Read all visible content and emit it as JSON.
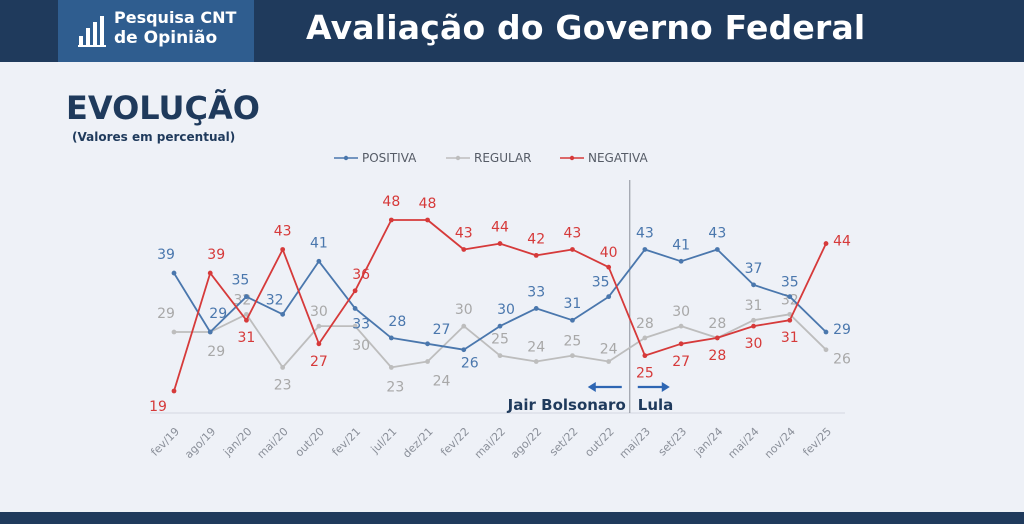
{
  "header": {
    "logo_line1": "Pesquisa CNT",
    "logo_line2": "de Opinião",
    "title": "Avaliação do Governo Federal"
  },
  "section": {
    "heading": "EVOLUÇÃO",
    "subheading": "(Valores em percentual)"
  },
  "colors": {
    "positiva": "#4a77ad",
    "regular": "#bdbdbd",
    "negativa": "#d63a3a",
    "navy": "#1f3a5c",
    "annotation": "#1f3a5c"
  },
  "chart_data": {
    "type": "line",
    "x": [
      "fev/19",
      "ago/19",
      "jan/20",
      "mai/20",
      "out/20",
      "fev/21",
      "jul/21",
      "dez/21",
      "fev/22",
      "mai/22",
      "ago/22",
      "set/22",
      "out/22",
      "mai/23",
      "set/23",
      "jan/24",
      "mai/24",
      "nov/24",
      "fev/25"
    ],
    "series": [
      {
        "name": "POSITIVA",
        "values": [
          39,
          29,
          35,
          32,
          41,
          33,
          28,
          27,
          26,
          30,
          33,
          31,
          35,
          43,
          41,
          43,
          37,
          35,
          29
        ]
      },
      {
        "name": "REGULAR",
        "values": [
          29,
          29,
          32,
          23,
          30,
          30,
          23,
          24,
          30,
          25,
          24,
          25,
          24,
          28,
          30,
          28,
          31,
          32,
          26
        ]
      },
      {
        "name": "NEGATIVA",
        "values": [
          19,
          39,
          31,
          43,
          27,
          36,
          48,
          48,
          43,
          44,
          42,
          43,
          40,
          25,
          27,
          28,
          30,
          31,
          44
        ]
      }
    ],
    "legend": "top-center",
    "annotations": [
      {
        "text": "Jair Bolsonaro",
        "direction": "left"
      },
      {
        "text": "Lula",
        "direction": "right"
      }
    ],
    "divider_between": [
      "out/22",
      "mai/23"
    ],
    "grid": false
  }
}
